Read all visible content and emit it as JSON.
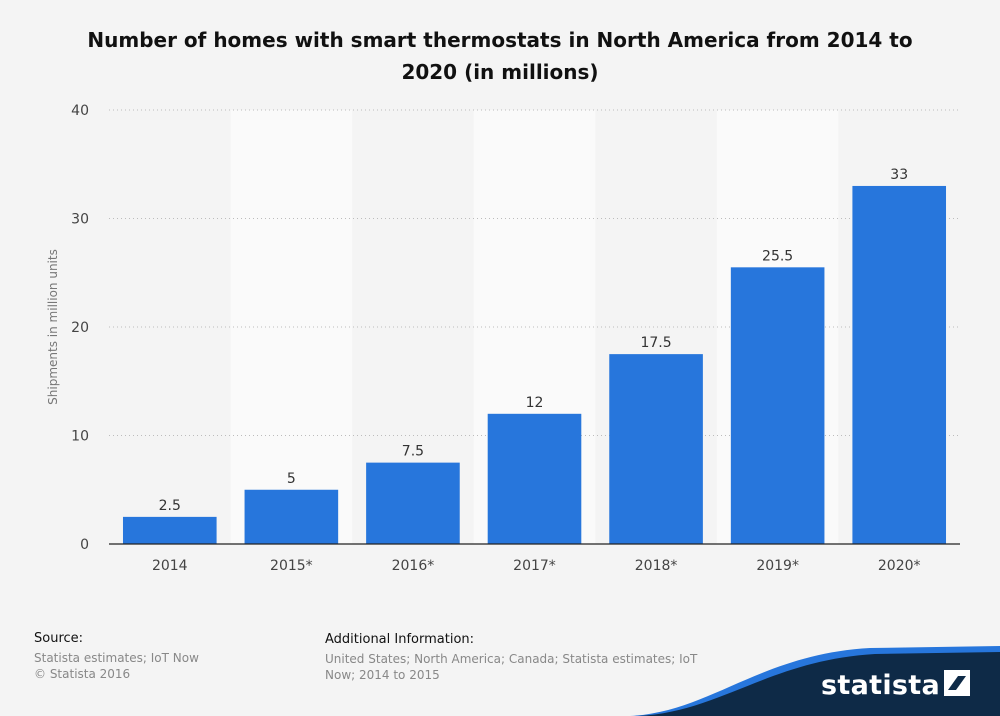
{
  "chart_data": {
    "type": "bar",
    "title": "Number of homes with smart thermostats in North America from 2014 to 2020 (in millions)",
    "categories": [
      "2014",
      "2015*",
      "2016*",
      "2017*",
      "2018*",
      "2019*",
      "2020*"
    ],
    "values": [
      2.5,
      5,
      7.5,
      12,
      17.5,
      25.5,
      33
    ],
    "data_labels": [
      "2.5",
      "5",
      "7.5",
      "12",
      "17.5",
      "25.5",
      "33"
    ],
    "xlabel": "",
    "ylabel": "Shipments in million units",
    "ylim": [
      0,
      40
    ],
    "yticks": [
      0,
      10,
      20,
      30,
      40
    ],
    "grid": true,
    "bar_color": "#2776dc"
  },
  "footer": {
    "source_heading": "Source:",
    "source_lines": [
      "Statista estimates; IoT Now",
      "© Statista 2016"
    ],
    "info_heading": "Additional Information:",
    "info_lines": [
      "United States; North America; Canada; Statista estimates; IoT",
      "Now; 2014 to 2015"
    ]
  },
  "brand": {
    "name": "statista",
    "dark_color": "#0e2a47",
    "accent_color": "#2776dc"
  }
}
